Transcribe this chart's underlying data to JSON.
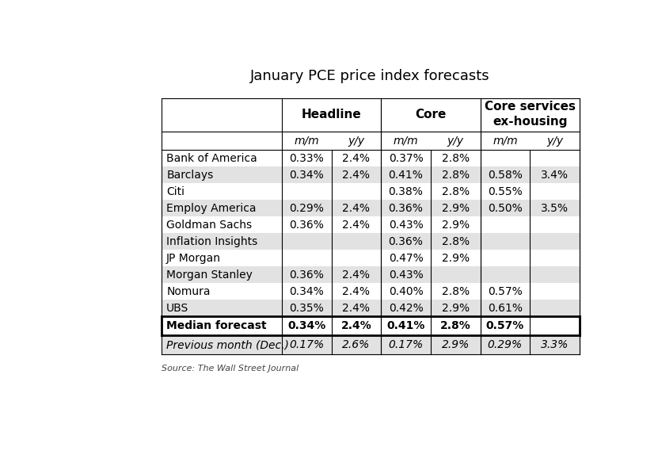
{
  "title": "January PCE price index forecasts",
  "source": "Source: The Wall Street Journal",
  "rows": [
    {
      "name": "Bank of America",
      "values": [
        "0.33%",
        "2.4%",
        "0.37%",
        "2.8%",
        "",
        ""
      ],
      "shaded": false
    },
    {
      "name": "Barclays",
      "values": [
        "0.34%",
        "2.4%",
        "0.41%",
        "2.8%",
        "0.58%",
        "3.4%"
      ],
      "shaded": true
    },
    {
      "name": "Citi",
      "values": [
        "",
        "",
        "0.38%",
        "2.8%",
        "0.55%",
        ""
      ],
      "shaded": false
    },
    {
      "name": "Employ America",
      "values": [
        "0.29%",
        "2.4%",
        "0.36%",
        "2.9%",
        "0.50%",
        "3.5%"
      ],
      "shaded": true
    },
    {
      "name": "Goldman Sachs",
      "values": [
        "0.36%",
        "2.4%",
        "0.43%",
        "2.9%",
        "",
        ""
      ],
      "shaded": false
    },
    {
      "name": "Inflation Insights",
      "values": [
        "",
        "",
        "0.36%",
        "2.8%",
        "",
        ""
      ],
      "shaded": true
    },
    {
      "name": "JP Morgan",
      "values": [
        "",
        "",
        "0.47%",
        "2.9%",
        "",
        ""
      ],
      "shaded": false
    },
    {
      "name": "Morgan Stanley",
      "values": [
        "0.36%",
        "2.4%",
        "0.43%",
        "",
        "",
        ""
      ],
      "shaded": true
    },
    {
      "name": "Nomura",
      "values": [
        "0.34%",
        "2.4%",
        "0.40%",
        "2.8%",
        "0.57%",
        ""
      ],
      "shaded": false
    },
    {
      "name": "UBS",
      "values": [
        "0.35%",
        "2.4%",
        "0.42%",
        "2.9%",
        "0.61%",
        ""
      ],
      "shaded": true
    }
  ],
  "median_row": {
    "name": "Median forecast",
    "values": [
      "0.34%",
      "2.4%",
      "0.41%",
      "2.8%",
      "0.57%",
      ""
    ]
  },
  "prev_row": {
    "name": "Previous month (Dec.)",
    "values": [
      "0.17%",
      "2.6%",
      "0.17%",
      "2.9%",
      "0.29%",
      "3.3%"
    ]
  },
  "shaded_color": "#e2e2e2",
  "white_color": "#ffffff",
  "lw_thin": 0.8,
  "lw_thick": 2.0,
  "title_fontsize": 13,
  "header_fontsize": 11,
  "sub_fontsize": 10,
  "cell_fontsize": 10,
  "source_fontsize": 8
}
